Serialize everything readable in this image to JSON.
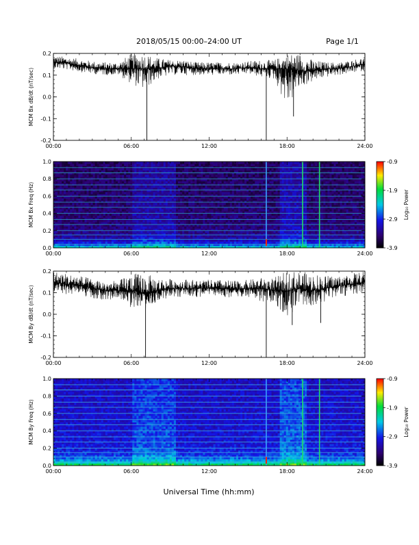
{
  "header": {
    "title": "2018/05/15  00:00–24:00 UT",
    "page": "Page 1/1"
  },
  "xaxis": {
    "label": "Universal Time (hh:mm)",
    "ticks": [
      "00:00",
      "06:00",
      "12:00",
      "18:00",
      "24:00"
    ]
  },
  "colorbar": {
    "label": "Log₁₀ Power",
    "ticks": [
      "-0.9",
      "-1.9",
      "-2.9",
      "-3.9"
    ]
  },
  "colors": {
    "trace": "#000000",
    "frame": "#000000",
    "background": "#ffffff"
  },
  "chart_data": [
    {
      "type": "line",
      "ylabel": "MCM Bx dB/dt (nT/sec)",
      "xlim": [
        0,
        24
      ],
      "ylim": [
        -0.2,
        0.2
      ],
      "yticks": [
        "0.2",
        "0.1",
        "0.0",
        "-0.1",
        "-0.2"
      ],
      "envelope": {
        "x": [
          0,
          1,
          2,
          3,
          4,
          5,
          6,
          7,
          8,
          9,
          10,
          11,
          12,
          13,
          14,
          15,
          16,
          17,
          18,
          19,
          20,
          21,
          22,
          23,
          24
        ],
        "center": [
          0.16,
          0.155,
          0.145,
          0.135,
          0.13,
          0.13,
          0.13,
          0.13,
          0.13,
          0.14,
          0.14,
          0.13,
          0.13,
          0.13,
          0.13,
          0.135,
          0.13,
          0.13,
          0.13,
          0.12,
          0.12,
          0.13,
          0.13,
          0.14,
          0.15
        ],
        "upper": [
          0.19,
          0.185,
          0.175,
          0.165,
          0.16,
          0.16,
          0.2,
          0.2,
          0.18,
          0.17,
          0.17,
          0.16,
          0.16,
          0.16,
          0.16,
          0.165,
          0.17,
          0.17,
          0.2,
          0.2,
          0.17,
          0.16,
          0.16,
          0.17,
          0.185
        ],
        "lower": [
          0.13,
          0.125,
          0.115,
          0.105,
          0.1,
          0.1,
          0.06,
          0.03,
          0.08,
          0.1,
          0.1,
          0.1,
          0.1,
          0.1,
          0.1,
          0.105,
          0.09,
          0.08,
          -0.05,
          0.04,
          0.07,
          0.09,
          0.1,
          0.11,
          0.12
        ]
      },
      "spikes": [
        {
          "x": 7.2,
          "y": -0.2
        },
        {
          "x": 16.4,
          "y": -0.2
        },
        {
          "x": 18.5,
          "y": -0.09
        }
      ]
    },
    {
      "type": "heatmap",
      "ylabel": "MCM Bx Freq (Hz)",
      "xlim": [
        0,
        24
      ],
      "ylim": [
        0,
        1.0
      ],
      "yticks": [
        "1.0",
        "0.8",
        "0.6",
        "0.4",
        "0.2",
        "0.0"
      ],
      "zlim": [
        -3.9,
        -0.9
      ],
      "harmonic_lines_hz": [
        0.04,
        0.1,
        0.15,
        0.2,
        0.27,
        0.33,
        0.4,
        0.47,
        0.53,
        0.6,
        0.67,
        0.73,
        0.8,
        0.87,
        0.93
      ],
      "vertical_lines_hr": [
        16.4,
        19.2,
        20.5
      ]
    },
    {
      "type": "line",
      "ylabel": "MCM By dB/dt (nT/sec)",
      "xlim": [
        0,
        24
      ],
      "ylim": [
        -0.2,
        0.2
      ],
      "yticks": [
        "0.2",
        "0.1",
        "0.0",
        "-0.1",
        "-0.2"
      ],
      "envelope": {
        "x": [
          0,
          1,
          2,
          3,
          4,
          5,
          6,
          7,
          8,
          9,
          10,
          11,
          12,
          13,
          14,
          15,
          16,
          17,
          18,
          19,
          20,
          21,
          22,
          23,
          24
        ],
        "center": [
          0.15,
          0.14,
          0.135,
          0.12,
          0.11,
          0.11,
          0.11,
          0.1,
          0.11,
          0.12,
          0.12,
          0.12,
          0.12,
          0.12,
          0.115,
          0.12,
          0.12,
          0.11,
          0.11,
          0.12,
          0.11,
          0.12,
          0.13,
          0.14,
          0.15
        ],
        "upper": [
          0.2,
          0.19,
          0.18,
          0.165,
          0.155,
          0.155,
          0.19,
          0.19,
          0.17,
          0.165,
          0.165,
          0.16,
          0.16,
          0.16,
          0.155,
          0.16,
          0.17,
          0.17,
          0.2,
          0.2,
          0.19,
          0.18,
          0.18,
          0.19,
          0.2
        ],
        "lower": [
          0.1,
          0.09,
          0.09,
          0.075,
          0.065,
          0.065,
          0.03,
          0.02,
          0.06,
          0.08,
          0.08,
          0.08,
          0.08,
          0.08,
          0.075,
          0.08,
          0.06,
          0.05,
          -0.01,
          0.03,
          0.04,
          0.06,
          0.08,
          0.09,
          0.1
        ]
      },
      "spikes": [
        {
          "x": 7.1,
          "y": -0.2
        },
        {
          "x": 16.4,
          "y": -0.2
        },
        {
          "x": 18.4,
          "y": -0.05
        },
        {
          "x": 20.6,
          "y": -0.04
        }
      ]
    },
    {
      "type": "heatmap",
      "ylabel": "MCM By Freq (Hz)",
      "xlim": [
        0,
        24
      ],
      "ylim": [
        0,
        1.0
      ],
      "yticks": [
        "1.0",
        "0.8",
        "0.6",
        "0.4",
        "0.2",
        "0.0"
      ],
      "zlim": [
        -3.9,
        -0.9
      ],
      "harmonic_lines_hz": [
        0.04,
        0.1,
        0.15,
        0.2,
        0.27,
        0.33,
        0.4,
        0.47,
        0.53,
        0.6,
        0.67,
        0.73,
        0.8,
        0.87,
        0.93
      ],
      "vertical_lines_hr": [
        16.4,
        19.2,
        20.5
      ]
    }
  ]
}
